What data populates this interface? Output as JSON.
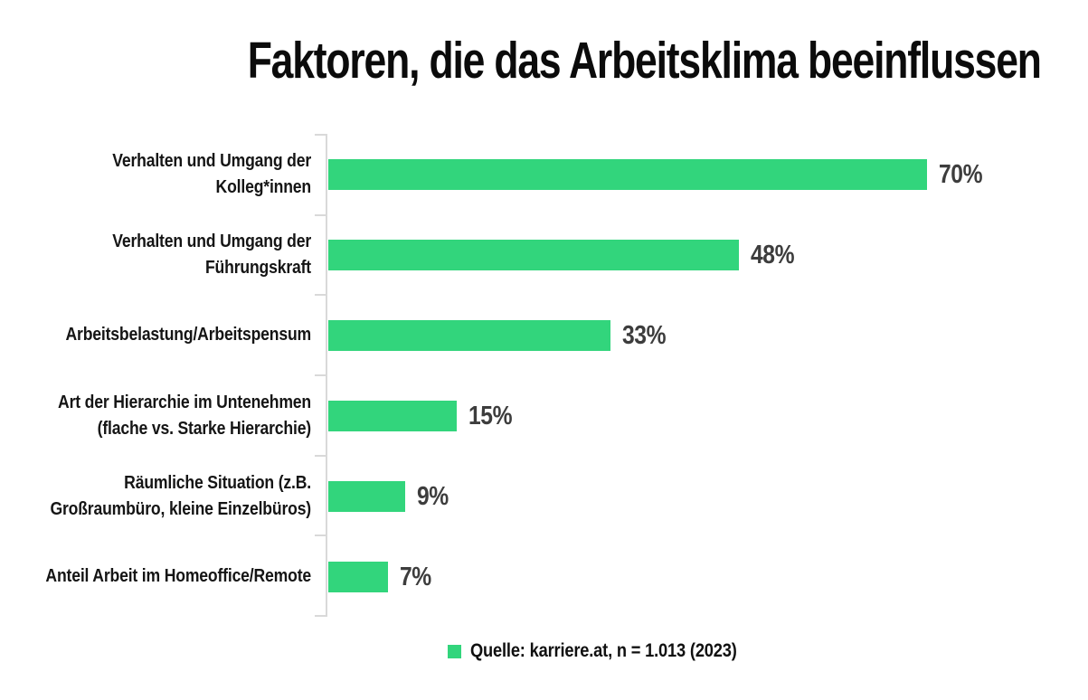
{
  "title": "Faktoren, die das Arbeitsklima beeinflussen",
  "chart_data": {
    "type": "bar",
    "orientation": "horizontal",
    "title": "Faktoren, die das Arbeitsklima beeinflussen",
    "categories": [
      "Verhalten und Umgang der\nKolleg*innen",
      "Verhalten und Umgang der\nFührungskraft",
      "Arbeitsbelastung/Arbeitspensum",
      "Art der Hierarchie im Untenehmen\n(flache vs. Starke Hierarchie)",
      "Räumliche Situation (z.B.\nGroßraumbüro, kleine Einzelbüros)",
      "Anteil Arbeit im Homeoffice/Remote"
    ],
    "values": [
      70,
      48,
      33,
      15,
      9,
      7
    ],
    "value_labels": [
      "70%",
      "48%",
      "33%",
      "15%",
      "9%",
      "7%"
    ],
    "value_suffix": "%",
    "xlim": [
      0,
      70
    ],
    "grid": false,
    "xlabel": "",
    "ylabel": "",
    "legend_position": "bottom-center",
    "legend": {
      "label": "Quelle: karriere.at, n = 1.013 (2023)"
    }
  },
  "colors": {
    "bar": "#32d57c",
    "axis": "#d9d9d9",
    "value_text": "#3d3d3d",
    "category_text": "#151515",
    "title_text": "#0b0b0b"
  }
}
